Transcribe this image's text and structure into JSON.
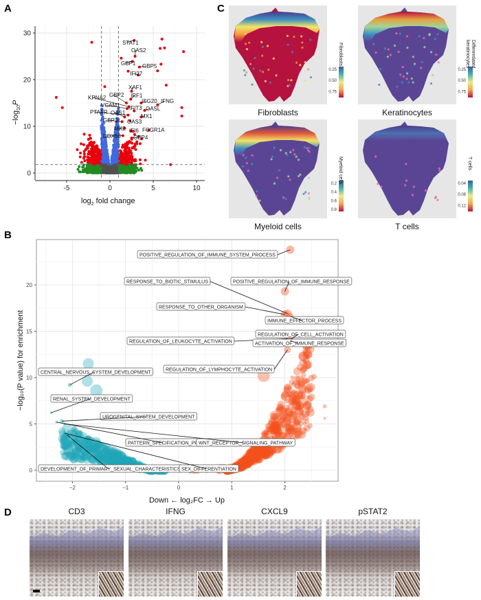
{
  "panels": {
    "a": "A",
    "b": "B",
    "c": "C",
    "d": "D"
  },
  "chart_data": [
    {
      "type": "scatter",
      "panel": "A",
      "xlabel_main": "log",
      "xlabel_sub": "2",
      "xlabel_rest": " fold change",
      "ylabel_main": "−log",
      "ylabel_sub": "10",
      "ylabel_rest": "P",
      "xlim": [
        -8,
        11
      ],
      "ylim": [
        -1,
        31
      ],
      "xticks": [
        -5,
        0,
        5,
        10
      ],
      "yticks": [
        0,
        10,
        20,
        30
      ],
      "grid": true,
      "fc_cutoff": 1,
      "p_cutoff": 1.8,
      "colors": {
        "significant": "#e8000b",
        "p_only": "#4169e1",
        "fc_only": "#228b22",
        "ns": "#505050"
      },
      "labeled_genes": [
        {
          "gene": "STAT1",
          "x": 2.8,
          "y": 28.4
        },
        {
          "gene": "OAS2",
          "x": 2.9,
          "y": 25.0
        },
        {
          "gene": "GBP1",
          "x": 2.6,
          "y": 23.9
        },
        {
          "gene": "GBP5",
          "x": 3.4,
          "y": 22.7
        },
        {
          "gene": "IFI27",
          "x": 3.3,
          "y": 21.0
        },
        {
          "gene": "XAF1",
          "x": 2.5,
          "y": 17.5
        },
        {
          "gene": "GBP2",
          "x": 1.9,
          "y": 15.0
        },
        {
          "gene": "KPNA2",
          "x": 2.2,
          "y": 14.2
        },
        {
          "gene": "IRF1",
          "x": 2.4,
          "y": 15.8
        },
        {
          "gene": "ISG20",
          "x": 3.6,
          "y": 15.0
        },
        {
          "gene": "IFNG",
          "x": 5.5,
          "y": 14.6
        },
        {
          "gene": "VCAM1",
          "x": 2.0,
          "y": 13.8
        },
        {
          "gene": "IFIT3",
          "x": 2.8,
          "y": 13.3
        },
        {
          "gene": "OASL",
          "x": 4.0,
          "y": 13.4
        },
        {
          "gene": "PTAFR",
          "x": 2.1,
          "y": 12.4
        },
        {
          "gene": "OAS1",
          "x": 1.7,
          "y": 12.0
        },
        {
          "gene": "MX1",
          "x": 3.6,
          "y": 12.0
        },
        {
          "gene": "GBP3",
          "x": 1.4,
          "y": 11.0
        },
        {
          "gene": "OAS3",
          "x": 2.3,
          "y": 11.2
        },
        {
          "gene": "MX2",
          "x": 1.7,
          "y": 9.6
        },
        {
          "gene": "IFI6",
          "x": 2.4,
          "y": 9.0
        },
        {
          "gene": "FCGR1A",
          "x": 4.5,
          "y": 9.2
        },
        {
          "gene": "DDX58",
          "x": 1.5,
          "y": 8.0
        },
        {
          "gene": "GBP4",
          "x": 2.5,
          "y": 7.5
        }
      ],
      "outliers": [
        {
          "x": -2.1,
          "y": 28.0
        },
        {
          "x": 6.0,
          "y": 28.7
        },
        {
          "x": 5.8,
          "y": 26.7
        },
        {
          "x": 6.3,
          "y": 26.8
        },
        {
          "x": 8.5,
          "y": 26.0
        },
        {
          "x": -6.2,
          "y": 16.2
        },
        {
          "x": -5.5,
          "y": 14.0
        },
        {
          "x": 8.3,
          "y": 14.0
        },
        {
          "x": 8.3,
          "y": 12.2
        },
        {
          "x": 7.0,
          "y": 1.8
        },
        {
          "x": 1.3,
          "y": 24.6
        },
        {
          "x": 2.1,
          "y": 21.8
        },
        {
          "x": 5.5,
          "y": 21.9
        },
        {
          "x": 5.9,
          "y": 23.3
        },
        {
          "x": 6.5,
          "y": 18.8
        },
        {
          "x": -0.6,
          "y": 18.5
        }
      ]
    },
    {
      "type": "scatter",
      "panel": "B",
      "xlabel": "Down ← log₂FC → Up",
      "ylabel": "−log₁₀(P value) for enrichment",
      "xlim": [
        -2.65,
        3.05
      ],
      "ylim": [
        -1.2,
        25.2
      ],
      "xticks": [
        -2,
        -1,
        0,
        1,
        2
      ],
      "yticks": [
        0,
        5,
        10,
        15,
        20
      ],
      "grid": true,
      "colors": {
        "down": "#1fa5b8",
        "up": "#f4511e"
      },
      "labeled_terms": [
        {
          "term": "POSITIVE_REGULATION_OF_IMMUNE_SYSTEM_PROCESS",
          "x": 2.1,
          "y": 23.8,
          "size": 6
        },
        {
          "term": "RESPONSE_TO_BIOTIC_STIMULUS",
          "x": 2.05,
          "y": 16.9,
          "size": 6
        },
        {
          "term": "POSITIVE_REGULATION_OF_IMMUNE_RESPONSE",
          "x": 2.0,
          "y": 19.3,
          "size": 6
        },
        {
          "term": "RESPONSE_TO_OTHER_ORGANISM",
          "x": 2.0,
          "y": 16.8,
          "size": 6
        },
        {
          "term": "IMMUNE_EFFECTOR_PROCESS",
          "x": 2.1,
          "y": 16.6,
          "size": 5
        },
        {
          "term": "REGULATION_OF_CELL_ACTIVATION",
          "x": 2.1,
          "y": 14.1,
          "size": 5
        },
        {
          "term": "REGULATION_OF_LEUKOCYTE_ACTIVATION",
          "x": 2.05,
          "y": 14.2,
          "size": 5
        },
        {
          "term": "ACTIVATION_OF_IMMUNE_RESPONSE",
          "x": 2.1,
          "y": 14.0,
          "size": 5
        },
        {
          "term": "REGULATION_OF_LYMPHOCYTE_ACTIVATION",
          "x": 2.05,
          "y": 13.0,
          "size": 5
        },
        {
          "term": "CENTRAL_NERVOUS_SYSTEM_DEVELOPMENT",
          "x": -2.05,
          "y": 9.2,
          "size": 3
        },
        {
          "term": "RENAL_SYSTEM_DEVELOPMENT",
          "x": -2.4,
          "y": 6.2,
          "size": 2
        },
        {
          "term": "UROGENITAL_SYSTEM_DEVELOPMENT",
          "x": -2.2,
          "y": 5.3,
          "size": 3
        },
        {
          "term": "PATTERN_SPECIFICATION_PRO",
          "x": -2.3,
          "y": 5.2,
          "size": 2
        },
        {
          "term": "WNT_RECEPTOR_SIGNALING_PATHWAY",
          "x": -2.15,
          "y": 5.0,
          "size": 2
        },
        {
          "term": "DEVELOPMENT_OF_PRIMARY_SEXUAL_CHARACTERISTICS",
          "x": -2.1,
          "y": 3.8,
          "size": 3
        },
        {
          "term": "SEX_DIFFERENTIATION",
          "x": -2.15,
          "y": 4.0,
          "size": 3
        }
      ],
      "notable_points": [
        {
          "x": -1.7,
          "y": 11.5,
          "size": 8
        },
        {
          "x": -1.72,
          "y": 9.6,
          "size": 8
        },
        {
          "x": -1.55,
          "y": 8.6,
          "size": 9
        },
        {
          "x": 1.6,
          "y": 10.2,
          "size": 9
        },
        {
          "x": 2.4,
          "y": 11.9,
          "size": 5
        },
        {
          "x": 2.55,
          "y": 10.1,
          "size": 4
        },
        {
          "x": 2.75,
          "y": 6.9,
          "size": 3
        },
        {
          "x": 2.75,
          "y": 5.6,
          "size": 2
        }
      ]
    },
    {
      "type": "heatmap",
      "panel": "C",
      "maps": [
        {
          "title": "Fibroblasts",
          "legend": [
            "Fibroblasts"
          ],
          "ticks": [
            "0.25",
            "0.50",
            "0.75"
          ],
          "body_color": "#b5123f",
          "band": [
            "#4b3b8c",
            "#3b8ec0",
            "#f2e46a",
            "#f29a3a",
            "#b5123f"
          ]
        },
        {
          "title": "Keratinocytes",
          "legend": [
            "Differentiated",
            "keratinocytes"
          ],
          "ticks": [
            "0.25",
            "0.50",
            "0.75"
          ],
          "body_color": "#5a4595",
          "band": [
            "#b5123f",
            "#e8a040",
            "#9fd59a",
            "#3b8ec0",
            "#5a4595"
          ]
        },
        {
          "title": "Myeloid cells",
          "legend": [
            "Myeloid cells"
          ],
          "ticks": [
            "0.2",
            "0.4",
            "0.6",
            "0.8"
          ],
          "body_color": "#5a4595",
          "band": [
            "#4b3b8c",
            "#e05a3a",
            "#f2e46a",
            "#3b8ec0",
            "#5a4595"
          ]
        },
        {
          "title": "T cells",
          "legend": [
            "T cells"
          ],
          "ticks": [
            "0.04",
            "0.08",
            "0.12"
          ],
          "body_color": "#5a4595",
          "band": [
            "#4b3b8c",
            "#4d6fb0",
            "#5a4595",
            "#5a4595",
            "#5a4595"
          ]
        }
      ],
      "colorscale": [
        "#3d5aa8",
        "#4bb3a8",
        "#e9ec8a",
        "#f7a552",
        "#b5123f"
      ]
    }
  ],
  "histology": {
    "stains": [
      "CD3",
      "IFNG",
      "CXCL9",
      "pSTAT2"
    ]
  }
}
